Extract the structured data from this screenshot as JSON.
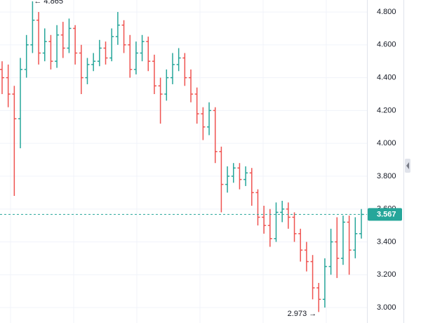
{
  "chart_data": {
    "type": "ohlc",
    "open": [
      4.45,
      4.4,
      4.3,
      4.15,
      4.45,
      4.6,
      4.75,
      4.55,
      4.62,
      4.5,
      4.66,
      4.58,
      4.7,
      4.55,
      4.4,
      4.48,
      4.5,
      4.58,
      4.52,
      4.65,
      4.72,
      4.6,
      4.45,
      4.55,
      4.62,
      4.5,
      4.35,
      4.3,
      4.4,
      4.48,
      4.52,
      4.4,
      4.3,
      4.18,
      4.1,
      4.2,
      3.95,
      3.75,
      3.8,
      3.85,
      3.78,
      3.82,
      3.7,
      3.55,
      3.5,
      3.42,
      3.58,
      3.6,
      3.55,
      3.45,
      3.35,
      3.28,
      3.12,
      3.05,
      3.25,
      3.4,
      3.3,
      3.52,
      3.35,
      3.45
    ],
    "high": [
      4.5,
      4.48,
      4.35,
      4.52,
      4.66,
      4.865,
      4.8,
      4.7,
      4.66,
      4.72,
      4.74,
      4.76,
      4.72,
      4.6,
      4.52,
      4.55,
      4.63,
      4.62,
      4.7,
      4.8,
      4.75,
      4.66,
      4.62,
      4.66,
      4.65,
      4.54,
      4.4,
      4.45,
      4.55,
      4.58,
      4.55,
      4.45,
      4.34,
      4.22,
      4.25,
      4.22,
      3.98,
      3.86,
      3.88,
      3.88,
      3.86,
      3.85,
      3.72,
      3.62,
      3.6,
      3.64,
      3.65,
      3.64,
      3.58,
      3.48,
      3.4,
      3.32,
      3.15,
      3.3,
      3.48,
      3.55,
      3.56,
      3.56,
      3.55,
      3.6
    ],
    "low": [
      4.3,
      4.22,
      3.68,
      3.97,
      4.4,
      4.55,
      4.48,
      4.5,
      4.45,
      4.46,
      4.52,
      4.55,
      4.48,
      4.3,
      4.36,
      4.44,
      4.47,
      4.48,
      4.5,
      4.6,
      4.55,
      4.4,
      4.42,
      4.5,
      4.44,
      4.3,
      4.12,
      4.26,
      4.36,
      4.44,
      4.35,
      4.25,
      4.12,
      4.02,
      4.05,
      3.88,
      3.58,
      3.7,
      3.76,
      3.72,
      3.74,
      3.62,
      3.5,
      3.45,
      3.37,
      3.4,
      3.52,
      3.48,
      3.4,
      3.28,
      3.22,
      3.05,
      2.973,
      3.0,
      3.2,
      3.18,
      3.26,
      3.2,
      3.3,
      3.42
    ],
    "close": [
      4.4,
      4.3,
      4.15,
      4.45,
      4.6,
      4.75,
      4.55,
      4.62,
      4.5,
      4.66,
      4.58,
      4.7,
      4.55,
      4.4,
      4.48,
      4.5,
      4.58,
      4.52,
      4.65,
      4.72,
      4.6,
      4.45,
      4.55,
      4.62,
      4.5,
      4.35,
      4.3,
      4.4,
      4.48,
      4.52,
      4.4,
      4.3,
      4.18,
      4.1,
      4.2,
      3.95,
      3.75,
      3.8,
      3.85,
      3.78,
      3.82,
      3.7,
      3.55,
      3.5,
      3.42,
      3.58,
      3.6,
      3.55,
      3.45,
      3.35,
      3.28,
      3.12,
      3.05,
      3.25,
      3.4,
      3.3,
      3.52,
      3.35,
      3.45,
      3.567
    ],
    "up_color": "#26a69a",
    "down_color": "#ef5350",
    "ylim": [
      2.906,
      4.873
    ],
    "yticks": [
      {
        "value": 3.0,
        "label": "3.000"
      },
      {
        "value": 3.2,
        "label": "3.200"
      },
      {
        "value": 3.4,
        "label": "3.400"
      },
      {
        "value": 3.6,
        "label": "3.600"
      },
      {
        "value": 3.8,
        "label": "3.800"
      },
      {
        "value": 4.0,
        "label": "4.000"
      },
      {
        "value": 4.2,
        "label": "4.200"
      },
      {
        "value": 4.4,
        "label": "4.400"
      },
      {
        "value": 4.6,
        "label": "4.600"
      },
      {
        "value": 4.8,
        "label": "4.800"
      }
    ],
    "grid": true,
    "annotations": [
      {
        "text": "← 4.865"
      },
      {
        "text": "2.973 →"
      }
    ]
  }
}
